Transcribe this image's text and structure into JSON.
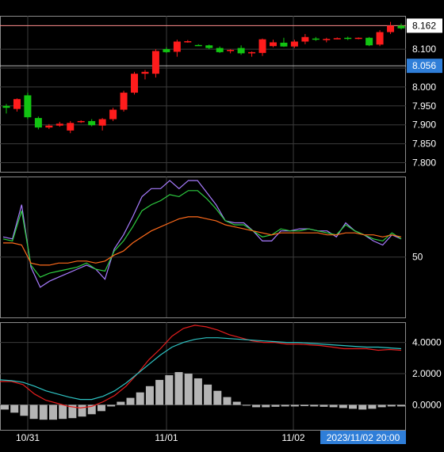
{
  "chart_data": [
    {
      "type": "candlestick",
      "panel": "price",
      "y_ticks": [
        "8.100",
        "8.050",
        "8.000",
        "7.950",
        "7.900",
        "7.850",
        "7.800"
      ],
      "y_tick_values": [
        8.1,
        8.05,
        8.0,
        7.95,
        7.9,
        7.85,
        7.8
      ],
      "ylim": [
        7.776,
        8.188
      ],
      "price_labels": [
        {
          "text": "8.162",
          "value": 8.162,
          "style": "last"
        },
        {
          "text": "8.056",
          "value": 8.056,
          "style": "marker"
        }
      ],
      "horizontal_lines": [
        {
          "value": 8.162,
          "color": "#ff8c8c"
        },
        {
          "value": 8.056,
          "color": "#b4b4b4"
        }
      ],
      "candles": [
        {
          "o": 7.95,
          "h": 7.955,
          "l": 7.93,
          "c": 7.945
        },
        {
          "o": 7.942,
          "h": 7.97,
          "l": 7.935,
          "c": 7.968
        },
        {
          "o": 7.978,
          "h": 7.985,
          "l": 7.915,
          "c": 7.92
        },
        {
          "o": 7.918,
          "h": 7.922,
          "l": 7.888,
          "c": 7.893
        },
        {
          "o": 7.893,
          "h": 7.902,
          "l": 7.889,
          "c": 7.898
        },
        {
          "o": 7.898,
          "h": 7.908,
          "l": 7.895,
          "c": 7.903
        },
        {
          "o": 7.885,
          "h": 7.91,
          "l": 7.878,
          "c": 7.905
        },
        {
          "o": 7.907,
          "h": 7.912,
          "l": 7.905,
          "c": 7.91
        },
        {
          "o": 7.91,
          "h": 7.915,
          "l": 7.896,
          "c": 7.899
        },
        {
          "o": 7.898,
          "h": 7.918,
          "l": 7.885,
          "c": 7.915
        },
        {
          "o": 7.915,
          "h": 7.945,
          "l": 7.91,
          "c": 7.94
        },
        {
          "o": 7.94,
          "h": 7.99,
          "l": 7.935,
          "c": 7.985
        },
        {
          "o": 7.985,
          "h": 8.04,
          "l": 7.98,
          "c": 8.035
        },
        {
          "o": 8.035,
          "h": 8.045,
          "l": 8.02,
          "c": 8.04
        },
        {
          "o": 8.035,
          "h": 8.1,
          "l": 8.025,
          "c": 8.095
        },
        {
          "o": 8.1,
          "h": 8.105,
          "l": 8.09,
          "c": 8.092
        },
        {
          "o": 8.093,
          "h": 8.125,
          "l": 8.08,
          "c": 8.12
        },
        {
          "o": 8.12,
          "h": 8.124,
          "l": 8.117,
          "c": 8.121
        },
        {
          "o": 8.111,
          "h": 8.113,
          "l": 8.109,
          "c": 8.11
        },
        {
          "o": 8.11,
          "h": 8.112,
          "l": 8.1,
          "c": 8.103
        },
        {
          "o": 8.103,
          "h": 8.107,
          "l": 8.09,
          "c": 8.092
        },
        {
          "o": 8.095,
          "h": 8.1,
          "l": 8.089,
          "c": 8.098
        },
        {
          "o": 8.103,
          "h": 8.11,
          "l": 8.085,
          "c": 8.089
        },
        {
          "o": 8.09,
          "h": 8.094,
          "l": 8.08,
          "c": 8.092
        },
        {
          "o": 8.09,
          "h": 8.128,
          "l": 8.082,
          "c": 8.126
        },
        {
          "o": 8.108,
          "h": 8.125,
          "l": 8.105,
          "c": 8.118
        },
        {
          "o": 8.117,
          "h": 8.13,
          "l": 8.106,
          "c": 8.107
        },
        {
          "o": 8.107,
          "h": 8.125,
          "l": 8.103,
          "c": 8.12
        },
        {
          "o": 8.12,
          "h": 8.14,
          "l": 8.113,
          "c": 8.132
        },
        {
          "o": 8.128,
          "h": 8.132,
          "l": 8.122,
          "c": 8.126
        },
        {
          "o": 8.124,
          "h": 8.13,
          "l": 8.118,
          "c": 8.127
        },
        {
          "o": 8.127,
          "h": 8.131,
          "l": 8.126,
          "c": 8.129
        },
        {
          "o": 8.13,
          "h": 8.133,
          "l": 8.124,
          "c": 8.127
        },
        {
          "o": 8.129,
          "h": 8.131,
          "l": 8.126,
          "c": 8.13
        },
        {
          "o": 8.13,
          "h": 8.132,
          "l": 8.108,
          "c": 8.11
        },
        {
          "o": 8.112,
          "h": 8.15,
          "l": 8.108,
          "c": 8.145
        },
        {
          "o": 8.145,
          "h": 8.172,
          "l": 8.14,
          "c": 8.162
        },
        {
          "o": 8.162,
          "h": 8.168,
          "l": 8.152,
          "c": 8.155
        }
      ]
    },
    {
      "type": "line",
      "panel": "oscillator",
      "y_ticks": [
        "50"
      ],
      "y_tick_values": [
        50
      ],
      "ylim": [
        20,
        90
      ],
      "series": [
        {
          "color": "#a87cff",
          "values": [
            60,
            59,
            76,
            45,
            35,
            38,
            40,
            42,
            44,
            46,
            44,
            39,
            54,
            61,
            70,
            80,
            84,
            84,
            88,
            84,
            88,
            88,
            82,
            76,
            68,
            67,
            67,
            63,
            58,
            58,
            63,
            63,
            64,
            64,
            63,
            63,
            60,
            67,
            63,
            61,
            58,
            56,
            61,
            59
          ]
        },
        {
          "color": "#2ecc40",
          "values": [
            59,
            58,
            73,
            46,
            40,
            42,
            43,
            44,
            45,
            47,
            44,
            43,
            53,
            58,
            65,
            73,
            76,
            78,
            81,
            80,
            83,
            83,
            79,
            74,
            68,
            66,
            66,
            63,
            60,
            61,
            64,
            63,
            63,
            64,
            63,
            62,
            61,
            66,
            63,
            61,
            59,
            58,
            62,
            59
          ]
        },
        {
          "color": "#ff6a1a",
          "values": [
            57,
            57,
            56,
            47,
            46,
            46,
            47,
            47,
            48,
            48,
            47,
            48,
            51,
            53,
            57,
            60,
            63,
            65,
            67,
            69,
            70,
            70,
            69,
            68,
            66,
            65,
            64,
            63,
            62,
            61,
            62,
            62,
            62,
            62,
            62,
            61,
            61,
            62,
            62,
            61,
            61,
            60,
            61,
            60
          ]
        }
      ]
    },
    {
      "type": "bar",
      "panel": "macd",
      "y_ticks": [
        "4.0000",
        "2.0000",
        "0.0000"
      ],
      "y_tick_values": [
        4,
        2,
        0
      ],
      "ylim": [
        -1.6,
        5.3
      ],
      "histogram": [
        -0.3,
        -0.5,
        -0.7,
        -0.9,
        -0.95,
        -0.95,
        -0.9,
        -0.85,
        -0.75,
        -0.6,
        -0.4,
        -0.1,
        0.2,
        0.45,
        0.8,
        1.2,
        1.6,
        1.9,
        2.1,
        2.0,
        1.7,
        1.3,
        0.9,
        0.5,
        0.2,
        -0.05,
        -0.15,
        -0.15,
        -0.12,
        -0.1,
        -0.1,
        -0.08,
        -0.1,
        -0.12,
        -0.15,
        -0.2,
        -0.25,
        -0.3,
        -0.25,
        -0.15,
        -0.1,
        -0.1
      ],
      "series": [
        {
          "color": "#e41e1e",
          "values": [
            1.5,
            1.5,
            1.3,
            0.7,
            0.3,
            0.1,
            -0.1,
            -0.2,
            -0.1,
            0.2,
            0.6,
            1.2,
            2.0,
            2.9,
            3.6,
            4.4,
            4.9,
            5.1,
            5.0,
            4.8,
            4.5,
            4.3,
            4.1,
            4.0,
            4.0,
            3.9,
            3.9,
            3.85,
            3.8,
            3.7,
            3.6,
            3.6,
            3.6,
            3.5,
            3.55,
            3.5
          ]
        },
        {
          "color": "#2ec4c4",
          "values": [
            1.6,
            1.55,
            1.45,
            1.2,
            0.9,
            0.7,
            0.5,
            0.35,
            0.35,
            0.55,
            0.9,
            1.4,
            2.0,
            2.6,
            3.2,
            3.7,
            4.0,
            4.2,
            4.3,
            4.3,
            4.25,
            4.2,
            4.15,
            4.1,
            4.05,
            4.0,
            4.0,
            3.95,
            3.9,
            3.85,
            3.8,
            3.75,
            3.7,
            3.7,
            3.65,
            3.6
          ]
        }
      ]
    }
  ],
  "x_axis": {
    "labels": [
      "10/31",
      "11/01",
      "11/02"
    ],
    "cursor_label": "2023/11/02 20:00"
  },
  "colors": {
    "up": "#ff1c1c",
    "down": "#12c412",
    "grid": "#3c3c3c",
    "panel_border": "#8a8a8a",
    "axis_text": "#ffffff",
    "cursor_label_bg": "#2f7ed8",
    "last_label_bg": "#ffffff",
    "last_label_text": "#000000",
    "histogram": "#b4b4b4"
  }
}
